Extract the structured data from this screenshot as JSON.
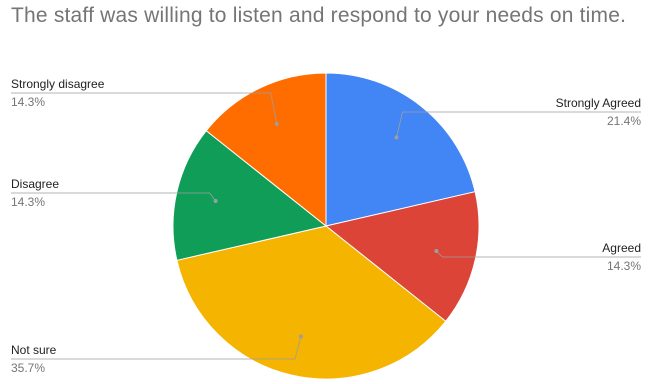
{
  "chart_data": {
    "type": "pie",
    "title": "The staff was willing to listen and respond to your needs on time.",
    "slices": [
      {
        "label": "Strongly Agreed",
        "percent_label": "21.4%",
        "value": 21.4,
        "color": "#4285F4"
      },
      {
        "label": "Agreed",
        "percent_label": "14.3%",
        "value": 14.3,
        "color": "#DB4437"
      },
      {
        "label": "Not sure",
        "percent_label": "35.7%",
        "value": 35.7,
        "color": "#F4B400"
      },
      {
        "label": "Disagree",
        "percent_label": "14.3%",
        "value": 14.3,
        "color": "#0F9D58"
      },
      {
        "label": "Strongly disagree",
        "percent_label": "14.3%",
        "value": 14.3,
        "color": "#FF6D00"
      }
    ],
    "legend": "none",
    "labels": "callouts"
  }
}
